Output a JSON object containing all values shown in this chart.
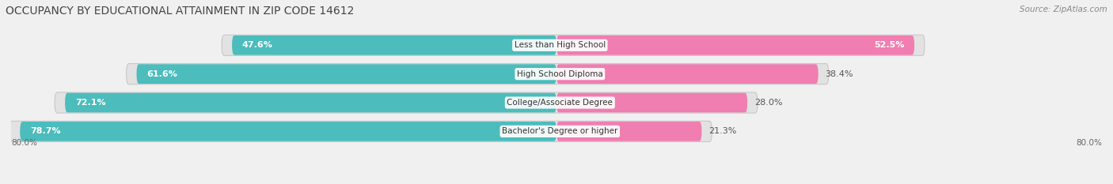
{
  "title": "OCCUPANCY BY EDUCATIONAL ATTAINMENT IN ZIP CODE 14612",
  "source": "Source: ZipAtlas.com",
  "categories": [
    "Less than High School",
    "High School Diploma",
    "College/Associate Degree",
    "Bachelor's Degree or higher"
  ],
  "owner_values": [
    47.6,
    61.6,
    72.1,
    78.7
  ],
  "renter_values": [
    52.5,
    38.4,
    28.0,
    21.3
  ],
  "owner_color": "#4CBCBC",
  "renter_color": "#F07EB0",
  "background_color": "#f0f0f0",
  "bar_background": "#e2e2e2",
  "bar_bg_shadow": "#d0d0d0",
  "xlim_left": -80.0,
  "xlim_right": 80.0,
  "title_fontsize": 10,
  "source_fontsize": 7.5,
  "value_fontsize": 8,
  "cat_fontsize": 7.5
}
